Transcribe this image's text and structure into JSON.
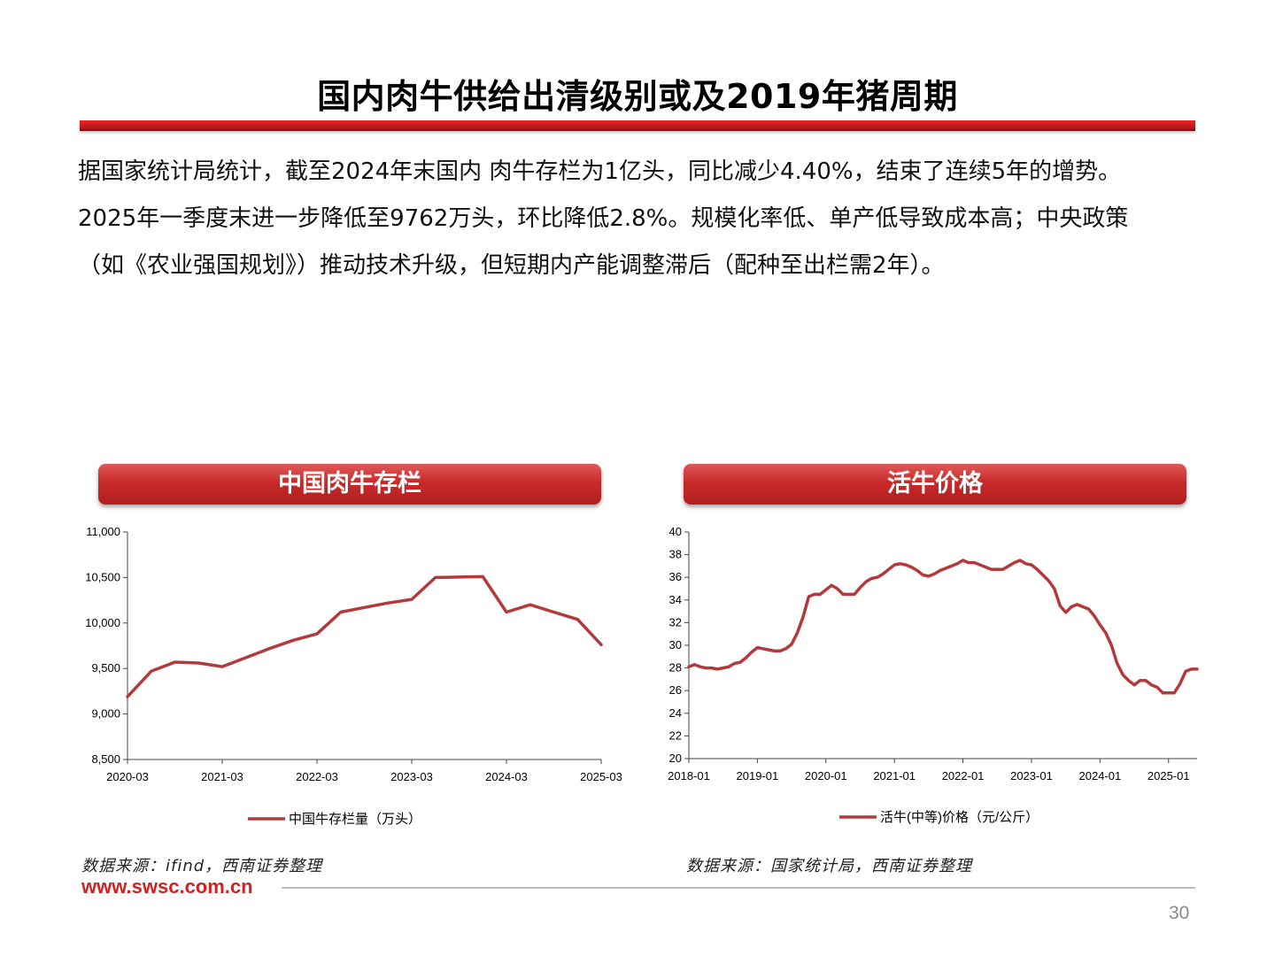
{
  "title": "国内肉牛供给出清级别或及2019年猪周期",
  "body": {
    "line1": "据国家统计局统计，截至2024年末国内  肉牛存栏为1亿头，同比减少4.40%，结束了连续5年的增势。",
    "line2": "2025年一季度末进一步降低至9762万头，环比降低2.8%。规模化率低、单产低导致成本高；中央政策",
    "line3": "（如《农业强国规划》）推动技术升级，但短期内产能调整滞后（配种至出栏需2年）。"
  },
  "panels": {
    "left_title": "中国肉牛存栏",
    "right_title": "活牛价格"
  },
  "sources": {
    "left": "数据来源：ifind，西南证券整理",
    "right": "数据来源：国家统计局，西南证券整理"
  },
  "footer": {
    "site": "www.swsc.com.cn",
    "page": "30"
  },
  "colors": {
    "accent": "#c4161c",
    "series": "#b33a3a"
  },
  "chart_data": [
    {
      "type": "line",
      "title": "中国肉牛存栏",
      "x_ticks": [
        "2020-03",
        "2021-03",
        "2022-03",
        "2023-03",
        "2024-03",
        "2025-03"
      ],
      "ylim": [
        8500,
        11000
      ],
      "y_ticks": [
        8500,
        9000,
        9500,
        10000,
        10500,
        11000
      ],
      "y_tick_labels": [
        "8,500",
        "9,000",
        "9,500",
        "10,000",
        "10,500",
        "11,000"
      ],
      "series": [
        {
          "name": "中国牛存栏量（万头）",
          "points": [
            [
              0,
              9190
            ],
            [
              0.25,
              9470
            ],
            [
              0.5,
              9570
            ],
            [
              0.75,
              9560
            ],
            [
              1.0,
              9520
            ],
            [
              1.25,
              9620
            ],
            [
              1.5,
              9720
            ],
            [
              1.75,
              9810
            ],
            [
              2.0,
              9880
            ],
            [
              2.25,
              10120
            ],
            [
              2.5,
              10170
            ],
            [
              2.75,
              10220
            ],
            [
              3.0,
              10260
            ],
            [
              3.25,
              10500
            ],
            [
              3.5,
              10505
            ],
            [
              3.75,
              10510
            ],
            [
              4.0,
              10120
            ],
            [
              4.25,
              10200
            ],
            [
              4.5,
              10120
            ],
            [
              4.75,
              10040
            ],
            [
              5.0,
              9762
            ]
          ]
        }
      ]
    },
    {
      "type": "line",
      "title": "活牛价格",
      "x_ticks": [
        "2018-01",
        "2019-01",
        "2020-01",
        "2021-01",
        "2022-01",
        "2023-01",
        "2024-01",
        "2025-01"
      ],
      "ylim": [
        20,
        40
      ],
      "y_ticks": [
        20,
        22,
        24,
        26,
        28,
        30,
        32,
        34,
        36,
        38,
        40
      ],
      "y_tick_labels": [
        "20",
        "22",
        "24",
        "26",
        "28",
        "30",
        "32",
        "34",
        "36",
        "38",
        "40"
      ],
      "series": [
        {
          "name": "活牛(中等)价格（元/公斤）",
          "values": [
            28.1,
            28.3,
            28.1,
            28.0,
            28.0,
            27.9,
            28.0,
            28.1,
            28.4,
            28.5,
            28.9,
            29.4,
            29.8,
            29.7,
            29.6,
            29.5,
            29.5,
            29.7,
            30.1,
            31.1,
            32.5,
            34.3,
            34.5,
            34.5,
            34.9,
            35.3,
            35.0,
            34.5,
            34.5,
            34.5,
            35.1,
            35.6,
            35.9,
            36.0,
            36.3,
            36.7,
            37.1,
            37.2,
            37.1,
            36.9,
            36.6,
            36.2,
            36.1,
            36.3,
            36.6,
            36.8,
            37.0,
            37.2,
            37.5,
            37.3,
            37.3,
            37.1,
            36.9,
            36.7,
            36.7,
            36.7,
            37.0,
            37.3,
            37.5,
            37.2,
            37.1,
            36.7,
            36.2,
            35.7,
            35.0,
            33.5,
            32.9,
            33.4,
            33.6,
            33.4,
            33.2,
            32.6,
            31.8,
            31.1,
            30.0,
            28.4,
            27.4,
            26.9,
            26.5,
            26.9,
            26.9,
            26.5,
            26.3,
            25.8,
            25.8,
            25.8,
            26.6,
            27.7,
            27.9,
            27.9
          ]
        }
      ]
    }
  ]
}
